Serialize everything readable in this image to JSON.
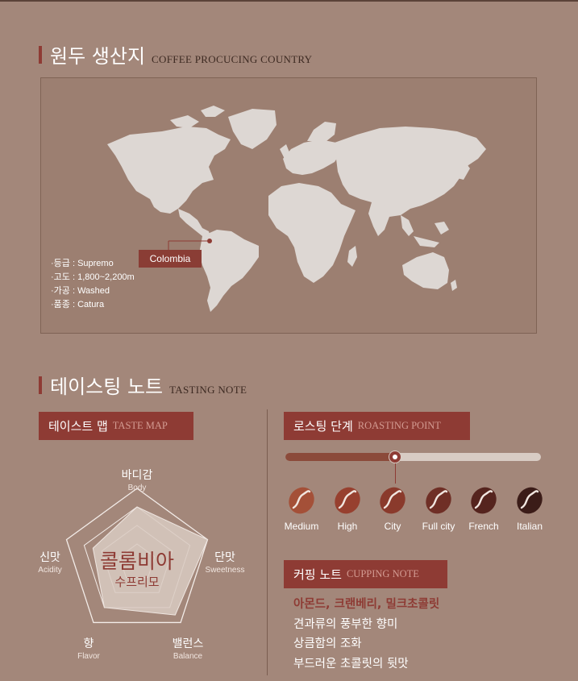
{
  "origin": {
    "title_ko": "원두 생산지",
    "title_en": "COFFEE PROCUCING COUNTRY",
    "country_label": "Colombia",
    "details": [
      "·등급 : Supremo",
      "·고도 : 1,800~2,200m",
      "·가공 : Washed",
      "·품종 : Catura"
    ]
  },
  "tasting": {
    "title_ko": "테이스팅 노트",
    "title_en": "TASTING NOTE"
  },
  "taste_map": {
    "tag_ko": "테이스트 맵",
    "tag_en": "TASTE MAP",
    "center_name": "콜롬비아",
    "center_sub": "수프리모",
    "axes": [
      {
        "ko": "바디감",
        "en": "Body"
      },
      {
        "ko": "단맛",
        "en": "Sweetness"
      },
      {
        "ko": "밸런스",
        "en": "Balance"
      },
      {
        "ko": "향",
        "en": "Flavor"
      },
      {
        "ko": "신맛",
        "en": "Acidity"
      }
    ],
    "levels": 4,
    "scores": [
      3,
      4,
      3.5,
      3,
      2.5
    ],
    "fill_color": "#d9cbc2"
  },
  "roasting": {
    "tag_ko": "로스팅 단계",
    "tag_en": "ROASTING POINT",
    "selected_index": 2,
    "progress": 0.43,
    "stages": [
      "Medium",
      "High",
      "City",
      "Full city",
      "French",
      "Italian"
    ],
    "bean_colors": [
      "#a45038",
      "#97402f",
      "#8a3a2c",
      "#6f2f26",
      "#55241e",
      "#3b1c18"
    ]
  },
  "cupping": {
    "tag_ko": "커핑 노트",
    "tag_en": "CUPPING NOTE",
    "highlight": "아몬드, 크랜베리, 밀크초콜릿",
    "lines": [
      "견과류의 풍부한 향미",
      "상큼함의 조화",
      "부드러운 초콜릿의 뒷맛"
    ]
  },
  "colors": {
    "background": "#a3877a",
    "accent": "#8e3b34",
    "map_land": "#ddd7d3"
  }
}
